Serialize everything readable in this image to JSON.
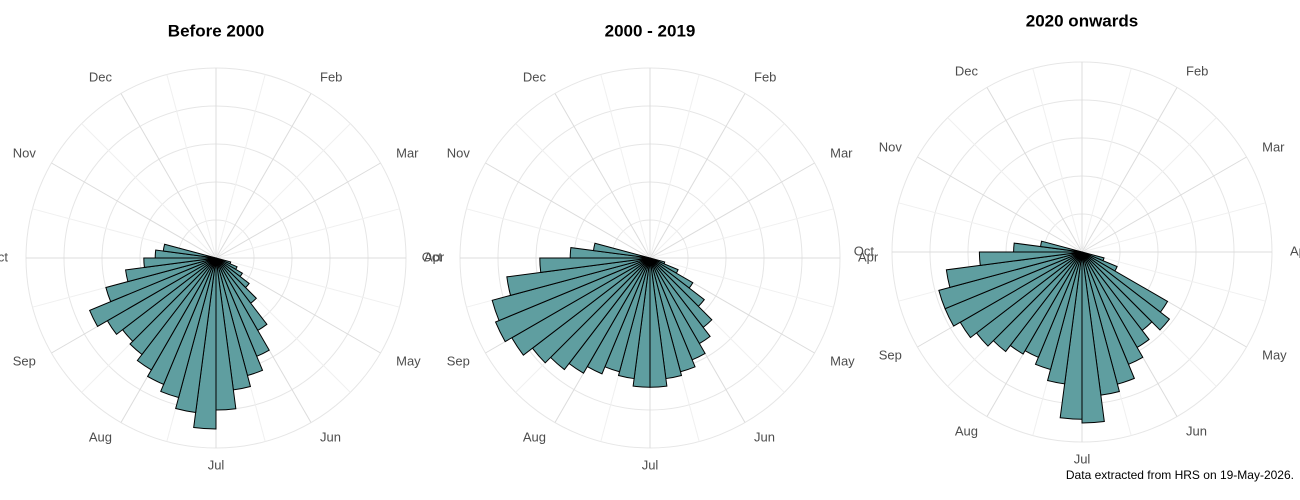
{
  "chart_data": [
    {
      "type": "polar-bar",
      "title": "Before 2000",
      "categories": [
        null,
        "Feb",
        "Mar",
        "Apr",
        "May",
        "Jun",
        "Jul",
        "Aug",
        "Sep",
        "Oct",
        "Nov",
        "Dec"
      ],
      "x": [
        3.625,
        3.875,
        4.125,
        4.375,
        4.625,
        4.875,
        5.125,
        5.375,
        5.625,
        5.875,
        6.125,
        6.375,
        6.625,
        6.875,
        7.125,
        7.375,
        7.625,
        7.875,
        8.125,
        8.375,
        8.625,
        8.875,
        9.125,
        9.375
      ],
      "values": [
        0.4,
        0.6,
        0.8,
        1.1,
        1.5,
        2.2,
        2.8,
        3.2,
        3.5,
        4.0,
        4.5,
        4.1,
        3.8,
        3.6,
        3.4,
        3.2,
        3.1,
        3.3,
        3.6,
        3.0,
        2.4,
        1.9,
        1.6,
        1.4
      ],
      "color": "#5f9ea0",
      "xlim": [
        0,
        12
      ],
      "ylim": [
        0,
        5
      ],
      "yticks": [
        1,
        2,
        3,
        4,
        5
      ],
      "grid": true
    },
    {
      "type": "polar-bar",
      "title": "2000 - 2019",
      "categories": [
        null,
        "Feb",
        "Mar",
        "Apr",
        "May",
        "Jun",
        "Jul",
        "Aug",
        "Sep",
        "Oct",
        "Nov",
        "Dec"
      ],
      "x": [
        3.625,
        3.875,
        4.125,
        4.375,
        4.625,
        4.875,
        5.125,
        5.375,
        5.625,
        5.875,
        6.125,
        6.375,
        6.625,
        6.875,
        7.125,
        7.375,
        7.625,
        7.875,
        8.125,
        8.375,
        8.625,
        8.875,
        9.125,
        9.375
      ],
      "values": [
        0.4,
        0.8,
        1.3,
        1.8,
        2.3,
        2.6,
        2.9,
        3.1,
        3.2,
        3.4,
        3.4,
        3.2,
        3.1,
        3.3,
        3.5,
        3.7,
        3.9,
        4.2,
        4.4,
        4.3,
        3.8,
        2.9,
        2.1,
        1.5
      ],
      "color": "#5f9ea0",
      "xlim": [
        0,
        12
      ],
      "ylim": [
        0,
        5
      ],
      "yticks": [
        1,
        2,
        3,
        4,
        5
      ],
      "grid": true
    },
    {
      "type": "polar-bar",
      "title": "2020 onwards",
      "categories": [
        null,
        "Feb",
        "Mar",
        "Apr",
        "May",
        "Jun",
        "Jul",
        "Aug",
        "Sep",
        "Oct",
        "Nov",
        "Dec"
      ],
      "x": [
        3.625,
        3.875,
        4.125,
        4.375,
        4.625,
        4.875,
        5.125,
        5.375,
        5.625,
        5.875,
        6.125,
        6.375,
        6.625,
        6.875,
        7.125,
        7.375,
        7.625,
        7.875,
        8.125,
        8.375,
        8.625,
        8.875,
        9.125,
        9.375
      ],
      "values": [
        0.6,
        1.0,
        2.6,
        2.9,
        2.6,
        2.9,
        3.2,
        3.6,
        3.8,
        4.5,
        4.4,
        3.5,
        3.2,
        3.0,
        3.1,
        3.3,
        3.5,
        3.7,
        3.9,
        3.9,
        3.6,
        2.7,
        1.8,
        1.1
      ],
      "color": "#5f9ea0",
      "xlim": [
        0,
        12
      ],
      "ylim": [
        0,
        5
      ],
      "yticks": [
        1,
        2,
        3,
        4,
        5
      ],
      "grid": true
    }
  ],
  "footnote": "Data extracted from HRS on 19-May-2026."
}
